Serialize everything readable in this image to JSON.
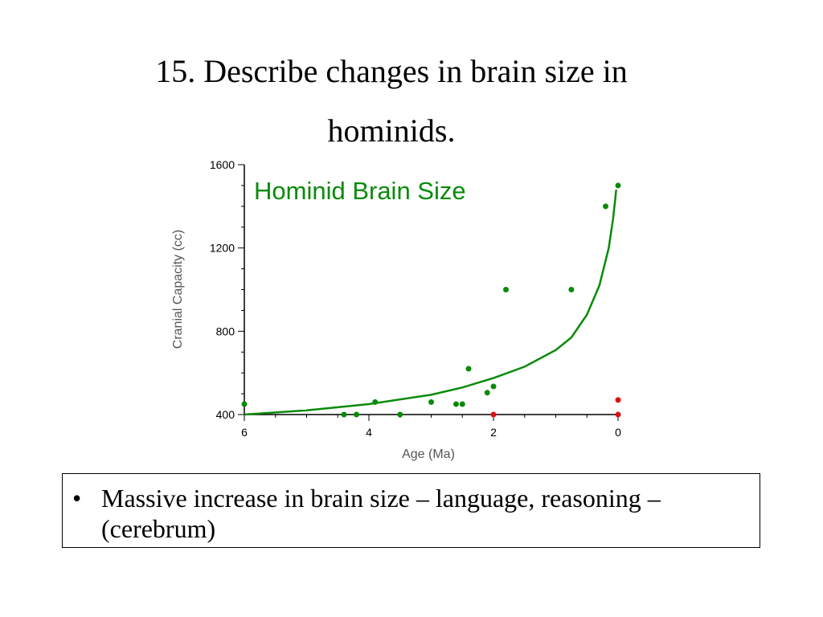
{
  "slide": {
    "title_line1": "15.  Describe changes in brain size in",
    "title_line2": "hominids.",
    "bullet_mark": "•",
    "bullet_text": "Massive increase in brain size – language, reasoning – (cerebrum)"
  },
  "chart_data": {
    "type": "scatter",
    "title": "Hominid Brain Size",
    "xlabel": "Age (Ma)",
    "ylabel": "Cranial Capacity (cc)",
    "xlim": [
      6,
      0
    ],
    "ylim": [
      400,
      1600
    ],
    "x_ticks": [
      6,
      4,
      2,
      0
    ],
    "y_ticks": [
      400,
      800,
      1200,
      1600
    ],
    "colors": {
      "series": "#0a8a0a",
      "highlight": "#e01010",
      "axis": "#000000"
    },
    "series": [
      {
        "color": "green",
        "points": [
          [
            6.0,
            450
          ],
          [
            4.4,
            400
          ],
          [
            4.2,
            400
          ],
          [
            3.9,
            460
          ],
          [
            3.5,
            400
          ],
          [
            3.0,
            460
          ],
          [
            2.6,
            450
          ],
          [
            2.5,
            450
          ],
          [
            2.4,
            620
          ],
          [
            2.1,
            505
          ],
          [
            2.0,
            535
          ],
          [
            1.8,
            1000
          ],
          [
            0.75,
            1000
          ],
          [
            0.2,
            1400
          ],
          [
            0.0,
            1500
          ]
        ]
      },
      {
        "color": "red",
        "points": [
          [
            2.0,
            400
          ],
          [
            0.0,
            470
          ],
          [
            0.0,
            400
          ]
        ]
      }
    ],
    "trend": {
      "type": "curve",
      "points": [
        [
          6.0,
          400
        ],
        [
          5.0,
          420
        ],
        [
          4.0,
          450
        ],
        [
          3.0,
          495
        ],
        [
          2.5,
          530
        ],
        [
          2.0,
          575
        ],
        [
          1.5,
          630
        ],
        [
          1.0,
          710
        ],
        [
          0.75,
          770
        ],
        [
          0.5,
          880
        ],
        [
          0.3,
          1020
        ],
        [
          0.15,
          1200
        ],
        [
          0.08,
          1340
        ],
        [
          0.04,
          1450
        ],
        [
          0.03,
          1480
        ]
      ]
    }
  }
}
